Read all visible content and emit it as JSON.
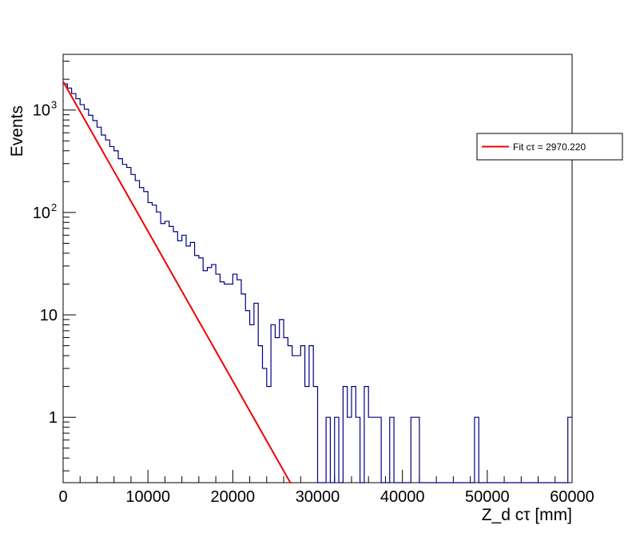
{
  "chart_data": {
    "type": "histogram",
    "title": "",
    "xlabel": "Z_d cτ [mm]",
    "ylabel": "Events",
    "xlim": [
      0,
      60000
    ],
    "ylim": [
      0.23,
      3500
    ],
    "yscale": "log",
    "grid": false,
    "x_ticks": [
      {
        "value": 0,
        "label": "0"
      },
      {
        "value": 10000,
        "label": "10000"
      },
      {
        "value": 20000,
        "label": "20000"
      },
      {
        "value": 30000,
        "label": "30000"
      },
      {
        "value": 40000,
        "label": "40000"
      },
      {
        "value": 50000,
        "label": "50000"
      },
      {
        "value": 60000,
        "label": "60000"
      }
    ],
    "y_ticks": [
      {
        "value": 1,
        "base": "1",
        "exp": ""
      },
      {
        "value": 10,
        "base": "10",
        "exp": ""
      },
      {
        "value": 100,
        "base": "10",
        "exp": "2"
      },
      {
        "value": 1000,
        "base": "10",
        "exp": "3"
      }
    ],
    "histogram": {
      "bin_width": 500,
      "color": "#000080",
      "values": [
        1800,
        1640,
        1450,
        1290,
        1130,
        1020,
        890,
        790,
        680,
        570,
        510,
        440,
        400,
        335,
        295,
        275,
        235,
        205,
        175,
        160,
        125,
        118,
        101,
        78,
        82,
        73,
        65,
        53,
        60,
        47,
        51,
        38,
        36,
        27,
        29,
        31,
        25,
        21,
        20,
        20,
        25,
        22,
        16,
        11,
        8,
        13,
        5,
        3,
        2,
        8,
        6,
        9,
        6,
        5,
        4,
        4,
        5,
        2,
        5,
        2,
        0,
        0,
        1,
        0,
        1,
        0,
        2,
        1,
        2,
        1,
        0.1,
        2,
        1,
        1,
        1,
        0,
        0,
        1,
        0,
        0,
        0,
        0,
        1,
        1,
        0,
        0,
        0,
        0,
        0,
        0,
        0,
        0,
        0,
        0,
        0,
        0,
        0,
        1,
        0,
        0,
        0,
        0,
        0,
        0,
        0,
        0,
        0,
        0,
        0,
        0,
        0,
        0,
        0,
        0,
        0,
        0,
        0,
        0,
        0,
        1
      ]
    },
    "fit": {
      "name": "Fit cτ = 2970.220",
      "color": "#ee0000",
      "function": "exponential",
      "amplitude": 1900,
      "ctau": 2970.22,
      "x_range": [
        0,
        28000
      ]
    },
    "legend": {
      "position": "top-right"
    }
  }
}
